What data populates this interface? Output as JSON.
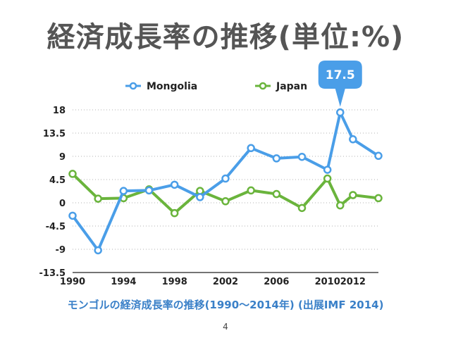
{
  "slide": {
    "title": "経済成長率の推移(単位:%)",
    "caption": "モンゴルの経済成長率の推移(1990〜2014年) (出展IMF 2014)",
    "page_number": "4"
  },
  "chart_data": {
    "type": "line",
    "title": "",
    "xlabel": "",
    "ylabel": "",
    "x": [
      1990,
      1992,
      1994,
      1996,
      1998,
      2000,
      2002,
      2004,
      2006,
      2008,
      2010,
      2012,
      2014
    ],
    "x_ticks": [
      "1990",
      "1994",
      "1998",
      "2002",
      "2006",
      "2010",
      "2012"
    ],
    "x_tick_values": [
      1990,
      1994,
      1998,
      2002,
      2006,
      2010,
      2012
    ],
    "y_ticks": [
      "18",
      "13.5",
      "9",
      "4.5",
      "0",
      "-4.5",
      "-9",
      "-13.5"
    ],
    "y_tick_values": [
      18,
      13.5,
      9,
      4.5,
      0,
      -4.5,
      -9,
      -13.5
    ],
    "xlim": [
      1990,
      2014
    ],
    "ylim": [
      -13.5,
      18
    ],
    "grid": true,
    "legend_position": "top",
    "series": [
      {
        "name": "Mongolia",
        "color": "#4a9ee8",
        "x": [
          1990,
          1992,
          1994,
          1996,
          1998,
          2000,
          2002,
          2004,
          2006,
          2008,
          2010,
          2011,
          2012,
          2014
        ],
        "values": [
          -2.5,
          -9.2,
          2.3,
          2.4,
          3.5,
          1.1,
          4.7,
          10.6,
          8.6,
          8.9,
          6.4,
          17.5,
          12.3,
          9.1
        ]
      },
      {
        "name": "Japan",
        "color": "#6ab43c",
        "x": [
          1990,
          1992,
          1994,
          1996,
          1998,
          2000,
          2002,
          2004,
          2006,
          2008,
          2010,
          2011,
          2012,
          2014
        ],
        "values": [
          5.6,
          0.8,
          0.9,
          2.6,
          -2.0,
          2.3,
          0.3,
          2.4,
          1.7,
          -1.0,
          4.7,
          -0.5,
          1.5,
          0.9
        ]
      }
    ],
    "annotation": {
      "text": "17.5",
      "series": "Mongolia",
      "x": 2011,
      "value": 17.5,
      "color": "#4a9ee8"
    }
  }
}
